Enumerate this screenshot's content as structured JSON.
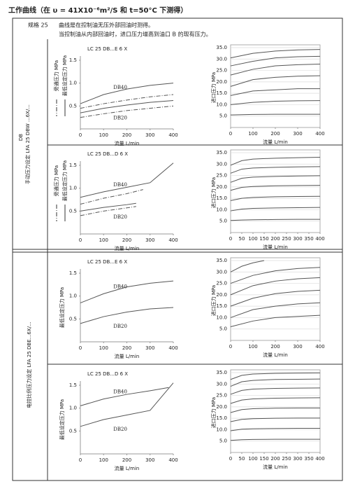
{
  "header": {
    "title": "工作曲线（在 υ = 41X10⁻⁶m²/S 和 t=50°C 下测得）"
  },
  "spec": "规格 25",
  "notes": [
    "曲线是在控制油无压外部回油时测得。",
    "当控制油从内部回油时，进口压力增高到油口 B 的现有压力。"
  ],
  "sections": [
    {
      "labels": [
        "手动压力设定 LFA 25 DBW ...6X/...",
        "DB"
      ]
    },
    {
      "labels": [
        "电控比例压力设定 LFA 25 DBE...6X/..."
      ]
    }
  ],
  "chart_data": [
    {
      "type": "line",
      "title": "LC 25 DB...E 6 X",
      "x_label": "流量 L/min",
      "legend": [
        {
          "label": "旁通压力 MPa",
          "dash": true
        },
        {
          "label": "最低设定压力 MPa",
          "dash": false
        }
      ],
      "xlim": [
        0,
        400
      ],
      "xticks": [
        0,
        100,
        200,
        300,
        400
      ],
      "ylim": [
        0,
        1.5
      ],
      "yticks": [
        0.5,
        {
          "value": 1,
          "label": "1.0"
        },
        1.5
      ],
      "grid": false,
      "series": [
        {
          "name": "DB40",
          "color": "#555",
          "dash": false,
          "x": [
            0,
            100,
            200,
            300,
            400
          ],
          "values": [
            0.55,
            0.75,
            0.87,
            0.95,
            1.0
          ]
        },
        {
          "color": "#555",
          "dash": true,
          "x": [
            0,
            100,
            200,
            300,
            400
          ],
          "values": [
            0.45,
            0.55,
            0.63,
            0.7,
            0.75
          ]
        },
        {
          "name": "DB20",
          "color": "#555",
          "dash": false,
          "x": [
            0,
            100,
            200,
            300,
            400
          ],
          "values": [
            0.35,
            0.45,
            0.52,
            0.58,
            0.62
          ]
        },
        {
          "color": "#555",
          "dash": true,
          "x": [
            0,
            100,
            200,
            300,
            400
          ],
          "values": [
            0.25,
            0.33,
            0.4,
            0.45,
            0.5
          ]
        }
      ]
    },
    {
      "type": "line",
      "y_label": "进口压力 MPa",
      "x_label": "流量 L/min",
      "xlim": [
        0,
        400
      ],
      "xticks": [
        0,
        100,
        200,
        300,
        400
      ],
      "ylim": [
        0,
        35
      ],
      "yticks": [
        {
          "value": 5,
          "label": "5.0"
        },
        {
          "value": 10,
          "label": "10.0"
        },
        {
          "value": 15,
          "label": "15.0"
        },
        {
          "value": 20,
          "label": "20.0"
        },
        {
          "value": 25,
          "label": "25.0"
        },
        {
          "value": 30,
          "label": "30.0"
        },
        {
          "value": 35,
          "label": "35.0"
        }
      ],
      "grid": true,
      "series": [
        {
          "color": "#555",
          "x": [
            0,
            100,
            200,
            300,
            400
          ],
          "values": [
            5.5,
            5.7,
            5.8,
            5.8,
            5.8
          ]
        },
        {
          "color": "#555",
          "x": [
            0,
            100,
            200,
            300,
            400
          ],
          "values": [
            10,
            11,
            11.5,
            11.7,
            11.8
          ]
        },
        {
          "color": "#555",
          "x": [
            0,
            100,
            200,
            300,
            400
          ],
          "values": [
            14,
            16,
            16.5,
            17,
            17
          ]
        },
        {
          "color": "#555",
          "x": [
            0,
            100,
            200,
            300,
            400
          ],
          "values": [
            18,
            21,
            22,
            22.5,
            22.7
          ]
        },
        {
          "color": "#555",
          "x": [
            0,
            100,
            200,
            300,
            400
          ],
          "values": [
            23,
            25.5,
            27,
            27.5,
            27.8
          ]
        },
        {
          "color": "#555",
          "x": [
            0,
            100,
            200,
            300,
            400
          ],
          "values": [
            27,
            29,
            30.5,
            31,
            31.2
          ]
        },
        {
          "color": "#555",
          "x": [
            0,
            100,
            200,
            300,
            400
          ],
          "values": [
            30.5,
            32.5,
            33.5,
            34,
            34.2
          ]
        }
      ]
    },
    {
      "type": "line",
      "title": "LC 25 DB...D 6 X",
      "x_label": "流量 L/min",
      "legend": [
        {
          "label": "旁通压力 MPa",
          "dash": true
        },
        {
          "label": "最低设定压力 MPa",
          "dash": false
        }
      ],
      "xlim": [
        0,
        400
      ],
      "xticks": [
        0,
        100,
        200,
        300,
        400
      ],
      "ylim": [
        0,
        1.5
      ],
      "yticks": [
        0.5,
        {
          "value": 1,
          "label": "1.0"
        },
        1.5
      ],
      "grid": false,
      "series": [
        {
          "name": "DB40",
          "color": "#555",
          "dash": false,
          "x": [
            0,
            100,
            200,
            300,
            400
          ],
          "values": [
            0.8,
            0.92,
            1.02,
            1.12,
            1.55
          ]
        },
        {
          "color": "#555",
          "dash": true,
          "x": [
            0,
            100,
            200,
            270
          ],
          "values": [
            0.65,
            0.78,
            0.88,
            0.97
          ]
        },
        {
          "name": "DB20",
          "color": "#555",
          "dash": false,
          "x": [
            0,
            100,
            200,
            240
          ],
          "values": [
            0.5,
            0.58,
            0.64,
            0.67
          ]
        },
        {
          "color": "#555",
          "dash": true,
          "x": [
            0,
            100,
            200,
            240
          ],
          "values": [
            0.4,
            0.5,
            0.57,
            0.6
          ]
        }
      ]
    },
    {
      "type": "line",
      "y_label": "进口压力 MPa",
      "x_label": "流量 L/min",
      "xlim": [
        0,
        400
      ],
      "xticks": [
        0,
        50,
        100,
        150,
        200,
        250,
        300,
        350,
        400
      ],
      "ylim": [
        0,
        35
      ],
      "yticks": [
        {
          "value": 5,
          "label": "5.0"
        },
        {
          "value": 10,
          "label": "10.0"
        },
        {
          "value": 15,
          "label": "15.0"
        },
        {
          "value": 20,
          "label": "20.0"
        },
        {
          "value": 25,
          "label": "25.0"
        },
        {
          "value": 30,
          "label": "30.0"
        },
        {
          "value": 35,
          "label": "35.0"
        }
      ],
      "grid": true,
      "series": [
        {
          "color": "#555",
          "x": [
            0,
            50,
            100,
            200,
            300,
            400
          ],
          "values": [
            5.3,
            5.5,
            5.6,
            5.7,
            5.8,
            5.8
          ]
        },
        {
          "color": "#555",
          "x": [
            0,
            50,
            100,
            200,
            300,
            400
          ],
          "values": [
            9.5,
            10.3,
            10.6,
            10.8,
            10.9,
            11
          ]
        },
        {
          "color": "#555",
          "x": [
            0,
            50,
            100,
            200,
            300,
            400
          ],
          "values": [
            14,
            15,
            15.4,
            15.7,
            15.8,
            15.9
          ]
        },
        {
          "color": "#555",
          "x": [
            0,
            50,
            100,
            200,
            300,
            400
          ],
          "values": [
            18.5,
            19.8,
            20.2,
            20.5,
            20.6,
            20.7
          ]
        },
        {
          "color": "#555",
          "x": [
            0,
            50,
            100,
            200,
            300,
            400
          ],
          "values": [
            22,
            23.8,
            24.3,
            24.6,
            24.8,
            24.9
          ]
        },
        {
          "color": "#555",
          "x": [
            0,
            50,
            100,
            200,
            300,
            400
          ],
          "values": [
            26,
            27.8,
            28.3,
            28.6,
            28.8,
            28.9
          ]
        },
        {
          "color": "#555",
          "x": [
            0,
            50,
            100,
            200,
            300,
            400
          ],
          "values": [
            29.5,
            31.5,
            32.2,
            32.6,
            32.8,
            33
          ]
        }
      ]
    },
    {
      "type": "line",
      "title": "LC 25 DB...E 6 X",
      "y_label": "最低设定压力 MPa",
      "x_label": "流量 L/min",
      "xlim": [
        0,
        400
      ],
      "xticks": [
        0,
        100,
        200,
        300,
        400
      ],
      "ylim": [
        0,
        1.5
      ],
      "yticks": [
        0.5,
        {
          "value": 1,
          "label": "1.0"
        },
        1.5
      ],
      "grid": false,
      "series": [
        {
          "name": "DB40",
          "color": "#555",
          "dash": false,
          "x": [
            0,
            100,
            200,
            300,
            400
          ],
          "values": [
            0.85,
            1.05,
            1.2,
            1.28,
            1.33
          ]
        },
        {
          "name": "DB20",
          "color": "#555",
          "dash": false,
          "x": [
            0,
            100,
            200,
            300,
            400
          ],
          "values": [
            0.4,
            0.55,
            0.65,
            0.72,
            0.75
          ]
        }
      ]
    },
    {
      "type": "line",
      "y_label": "进口压力 MPa",
      "x_label": "流量 L/min",
      "xlim": [
        0,
        400
      ],
      "xticks": [
        0,
        100,
        200,
        300,
        400
      ],
      "ylim": [
        0,
        35
      ],
      "yticks": [
        {
          "value": 5,
          "label": "5.0"
        },
        {
          "value": 10,
          "label": "10.0"
        },
        {
          "value": 15,
          "label": "15.0"
        },
        {
          "value": 20,
          "label": "20.0"
        },
        {
          "value": 25,
          "label": "25.0"
        },
        {
          "value": 30,
          "label": "30.0"
        },
        {
          "value": 35,
          "label": "35.0"
        }
      ],
      "grid": true,
      "series": [
        {
          "color": "#555",
          "x": [
            0,
            50,
            100,
            150
          ],
          "values": [
            30,
            32.5,
            34,
            35
          ]
        },
        {
          "color": "#555",
          "x": [
            0,
            100,
            200,
            300,
            400
          ],
          "values": [
            25,
            28.5,
            30.5,
            31.5,
            32
          ]
        },
        {
          "color": "#555",
          "x": [
            0,
            100,
            200,
            300,
            400
          ],
          "values": [
            20,
            24,
            26,
            27,
            27.5
          ]
        },
        {
          "color": "#555",
          "x": [
            0,
            100,
            200,
            300,
            400
          ],
          "values": [
            15,
            18.5,
            20.5,
            21.5,
            22
          ]
        },
        {
          "color": "#555",
          "x": [
            0,
            100,
            200,
            300,
            400
          ],
          "values": [
            10,
            13.5,
            15,
            16,
            16.5
          ]
        },
        {
          "color": "#555",
          "x": [
            0,
            100,
            200,
            300,
            400
          ],
          "values": [
            6,
            8.5,
            10,
            10.5,
            11
          ]
        }
      ]
    },
    {
      "type": "line",
      "title": "LC 25 DB...D 6 X",
      "y_label": "最低设定压力 MPa",
      "x_label": "流量 L/min",
      "xlim": [
        0,
        400
      ],
      "xticks": [
        0,
        100,
        200,
        300,
        400
      ],
      "ylim": [
        0,
        1.5
      ],
      "yticks": [
        0.5,
        {
          "value": 1,
          "label": "1.0"
        },
        1.5
      ],
      "grid": false,
      "series": [
        {
          "name": "DB40",
          "color": "#555",
          "dash": false,
          "x": [
            0,
            100,
            200,
            300,
            380
          ],
          "values": [
            1.05,
            1.2,
            1.3,
            1.38,
            1.45
          ]
        },
        {
          "name": "DB20",
          "color": "#555",
          "dash": false,
          "x": [
            0,
            100,
            200,
            300,
            400
          ],
          "values": [
            0.6,
            0.75,
            0.85,
            0.95,
            1.55
          ]
        }
      ]
    },
    {
      "type": "line",
      "y_label": "进口压力 MPa",
      "x_label": "流量 L/min",
      "xlim": [
        0,
        400
      ],
      "xticks": [
        0,
        50,
        100,
        150,
        200,
        250,
        300,
        350,
        400
      ],
      "ylim": [
        0,
        35
      ],
      "yticks": [
        {
          "value": 5,
          "label": "5.0"
        },
        {
          "value": 10,
          "label": "10.0"
        },
        {
          "value": 15,
          "label": "15.0"
        },
        {
          "value": 20,
          "label": "20.0"
        },
        {
          "value": 25,
          "label": "25.0"
        },
        {
          "value": 30,
          "label": "30.0"
        },
        {
          "value": 35,
          "label": "35.0"
        }
      ],
      "grid": true,
      "series": [
        {
          "color": "#555",
          "x": [
            0,
            50,
            100,
            200,
            300,
            400
          ],
          "values": [
            5.3,
            5.6,
            5.7,
            5.8,
            5.8,
            5.8
          ]
        },
        {
          "color": "#555",
          "x": [
            0,
            50,
            100,
            200,
            300,
            400
          ],
          "values": [
            9.5,
            10.2,
            10.4,
            10.5,
            10.6,
            10.6
          ]
        },
        {
          "color": "#555",
          "x": [
            0,
            50,
            100,
            200,
            300,
            400
          ],
          "values": [
            13.5,
            14.5,
            14.8,
            15,
            15.1,
            15.1
          ]
        },
        {
          "color": "#555",
          "x": [
            0,
            50,
            100,
            200,
            300,
            400
          ],
          "values": [
            17.5,
            18.8,
            19.2,
            19.4,
            19.5,
            19.5
          ]
        },
        {
          "color": "#555",
          "x": [
            0,
            50,
            100,
            200,
            300,
            400
          ],
          "values": [
            21.5,
            23,
            23.5,
            23.8,
            23.9,
            24
          ]
        },
        {
          "color": "#555",
          "x": [
            0,
            50,
            100,
            200,
            300,
            400
          ],
          "values": [
            25.5,
            27.2,
            27.8,
            28.1,
            28.2,
            28.3
          ]
        },
        {
          "color": "#555",
          "x": [
            0,
            50,
            100,
            200,
            300,
            400
          ],
          "values": [
            29,
            31,
            31.6,
            32,
            32.1,
            32.2
          ]
        },
        {
          "color": "#555",
          "x": [
            0,
            50,
            100,
            200,
            300,
            400
          ],
          "values": [
            32,
            33.8,
            34.4,
            34.7,
            34.8,
            34.9
          ]
        }
      ]
    }
  ]
}
